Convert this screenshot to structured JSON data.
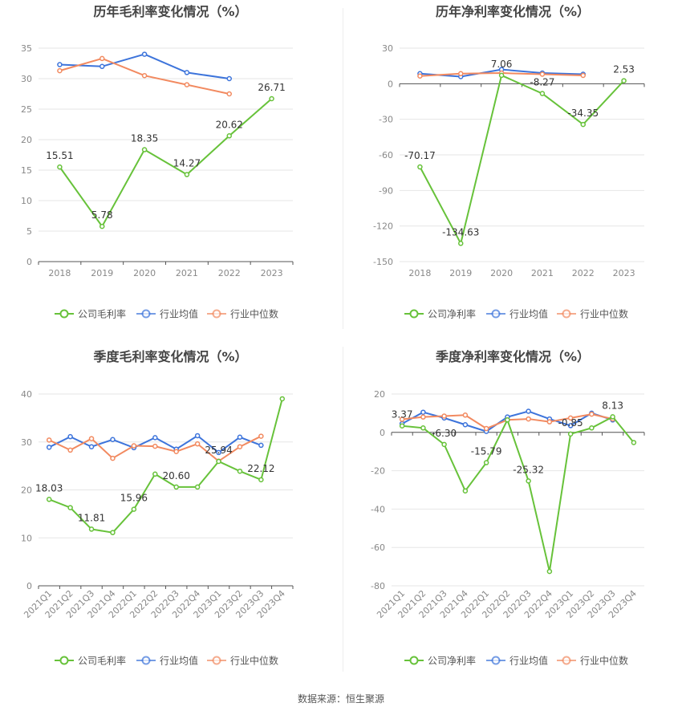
{
  "source_text": "数据来源：恒生聚源",
  "legend_labels": {
    "company_gross": "公司毛利率",
    "company_net": "公司净利率",
    "industry_avg": "行业均值",
    "industry_median": "行业中位数"
  },
  "colors": {
    "company": "#67c23a",
    "industry_avg": "#3d74db",
    "industry_median": "#f28a60",
    "grid": "#e6e6e6",
    "axis_text": "#888888",
    "title": "#444444"
  },
  "chart_data": [
    {
      "id": "annual-gross",
      "type": "line",
      "title": "历年毛利率变化情况（%）",
      "categories": [
        "2018",
        "2019",
        "2020",
        "2021",
        "2022",
        "2023"
      ],
      "ylim": [
        0,
        35
      ],
      "yticks": [
        0,
        5,
        10,
        15,
        20,
        25,
        30,
        35
      ],
      "grid": true,
      "legend_position": "bottom",
      "series": [
        {
          "name": "公司毛利率",
          "color_key": "company",
          "values": [
            15.51,
            5.78,
            18.35,
            14.27,
            20.62,
            26.71
          ],
          "labels": [
            "15.51",
            "5.78",
            "18.35",
            "14.27",
            "20.62",
            "26.71"
          ]
        },
        {
          "name": "行业均值",
          "color_key": "industry_avg",
          "values": [
            32.3,
            32.0,
            34.0,
            31.0,
            30.0,
            null
          ],
          "labels": []
        },
        {
          "name": "行业中位数",
          "color_key": "industry_median",
          "values": [
            31.3,
            33.3,
            30.5,
            29.0,
            27.5,
            null
          ],
          "labels": []
        }
      ]
    },
    {
      "id": "annual-net",
      "type": "line",
      "title": "历年净利率变化情况（%）",
      "categories": [
        "2018",
        "2019",
        "2020",
        "2021",
        "2022",
        "2023"
      ],
      "ylim": [
        -150,
        30
      ],
      "yticks": [
        -150,
        -120,
        -90,
        -60,
        -30,
        0,
        30
      ],
      "grid": true,
      "legend_position": "bottom",
      "series": [
        {
          "name": "公司净利率",
          "color_key": "company",
          "values": [
            -70.17,
            -134.63,
            7.06,
            -8.27,
            -34.35,
            2.53
          ],
          "labels": [
            "-70.17",
            "-134.63",
            "7.06",
            "-8.27",
            "-34.35",
            "2.53"
          ]
        },
        {
          "name": "行业均值",
          "color_key": "industry_avg",
          "values": [
            8.5,
            6.0,
            12.0,
            9.0,
            8.0,
            null
          ],
          "labels": []
        },
        {
          "name": "行业中位数",
          "color_key": "industry_median",
          "values": [
            6.5,
            8.5,
            9.0,
            8.0,
            7.0,
            null
          ],
          "labels": []
        }
      ]
    },
    {
      "id": "quarterly-gross",
      "type": "line",
      "title": "季度毛利率变化情况（%）",
      "categories": [
        "2021Q1",
        "2021Q2",
        "2021Q3",
        "2021Q4",
        "2022Q1",
        "2022Q2",
        "2022Q3",
        "2022Q4",
        "2023Q1",
        "2023Q2",
        "2023Q3",
        "2023Q4"
      ],
      "ylim": [
        0,
        40
      ],
      "yticks": [
        0,
        10,
        20,
        30,
        40
      ],
      "grid": true,
      "legend_position": "bottom",
      "series": [
        {
          "name": "公司毛利率",
          "color_key": "company",
          "values": [
            18.03,
            16.3,
            11.81,
            11.1,
            15.96,
            23.3,
            20.6,
            20.6,
            25.94,
            23.9,
            22.12,
            39.0
          ],
          "labels": [
            "18.03",
            "",
            "11.81",
            "",
            "15.96",
            "",
            "20.60",
            "",
            "25.94",
            "",
            "22.12",
            ""
          ]
        },
        {
          "name": "行业均值",
          "color_key": "industry_avg",
          "values": [
            28.9,
            31.1,
            29.0,
            30.5,
            28.8,
            30.9,
            28.5,
            31.3,
            27.8,
            31.0,
            29.3,
            null
          ],
          "labels": []
        },
        {
          "name": "行业中位数",
          "color_key": "industry_median",
          "values": [
            30.4,
            28.3,
            30.7,
            26.6,
            29.2,
            29.1,
            28.0,
            29.6,
            26.0,
            29.0,
            31.2,
            null
          ],
          "labels": []
        }
      ]
    },
    {
      "id": "quarterly-net",
      "type": "line",
      "title": "季度净利率变化情况（%）",
      "categories": [
        "2021Q1",
        "2021Q2",
        "2021Q3",
        "2021Q4",
        "2022Q1",
        "2022Q2",
        "2022Q3",
        "2022Q4",
        "2023Q1",
        "2023Q2",
        "2023Q3",
        "2023Q4"
      ],
      "ylim": [
        -80,
        20
      ],
      "yticks": [
        -80,
        -60,
        -40,
        -20,
        0,
        20
      ],
      "grid": true,
      "legend_position": "bottom",
      "series": [
        {
          "name": "公司净利率",
          "color_key": "company",
          "values": [
            3.37,
            2.3,
            -6.3,
            -30.5,
            -15.79,
            6.5,
            -25.32,
            -72.5,
            -0.85,
            2.3,
            8.13,
            -5.3
          ],
          "labels": [
            "3.37",
            "",
            "-6.30",
            "",
            "-15.79",
            "",
            "-25.32",
            "",
            "-0.85",
            "",
            "8.13",
            ""
          ]
        },
        {
          "name": "行业均值",
          "color_key": "industry_avg",
          "values": [
            4.5,
            10.5,
            7.5,
            4.0,
            0.5,
            8.0,
            11.0,
            7.0,
            3.5,
            10.0,
            6.5,
            null
          ],
          "labels": []
        },
        {
          "name": "行业中位数",
          "color_key": "industry_median",
          "values": [
            6.8,
            8.0,
            8.5,
            9.0,
            2.0,
            6.5,
            7.0,
            5.5,
            7.5,
            9.5,
            7.0,
            null
          ],
          "labels": []
        }
      ]
    }
  ]
}
